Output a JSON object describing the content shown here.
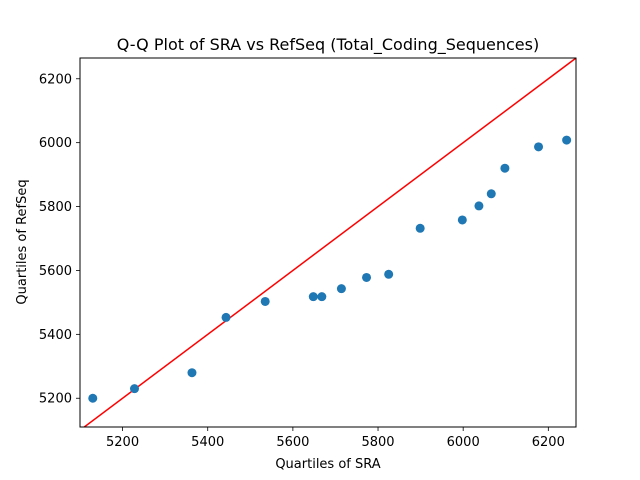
{
  "chart_data": {
    "type": "scatter",
    "title": "Q-Q Plot of SRA vs RefSeq (Total_Coding_Sequences)",
    "xlabel": "Quartiles of SRA",
    "ylabel": "Quartiles of RefSeq",
    "xlim": [
      5100,
      6265
    ],
    "ylim": [
      5110,
      6265
    ],
    "xticks": [
      5200,
      5400,
      5600,
      5800,
      6000,
      6200
    ],
    "yticks": [
      5200,
      5400,
      5600,
      5800,
      6000,
      6200
    ],
    "grid": false,
    "points": [
      {
        "x": 5130,
        "y": 5200
      },
      {
        "x": 5228,
        "y": 5230
      },
      {
        "x": 5363,
        "y": 5280
      },
      {
        "x": 5443,
        "y": 5453
      },
      {
        "x": 5535,
        "y": 5503
      },
      {
        "x": 5648,
        "y": 5518
      },
      {
        "x": 5668,
        "y": 5518
      },
      {
        "x": 5714,
        "y": 5543
      },
      {
        "x": 5773,
        "y": 5578
      },
      {
        "x": 5825,
        "y": 5588
      },
      {
        "x": 5899,
        "y": 5732
      },
      {
        "x": 5998,
        "y": 5758
      },
      {
        "x": 6037,
        "y": 5802
      },
      {
        "x": 6066,
        "y": 5840
      },
      {
        "x": 6098,
        "y": 5920
      },
      {
        "x": 6177,
        "y": 5987
      },
      {
        "x": 6243,
        "y": 6008
      }
    ],
    "reference_line": {
      "from": [
        5100,
        5100
      ],
      "to": [
        6265,
        6265
      ],
      "color": "#ff0000"
    },
    "marker_color": "#1f77b4"
  }
}
